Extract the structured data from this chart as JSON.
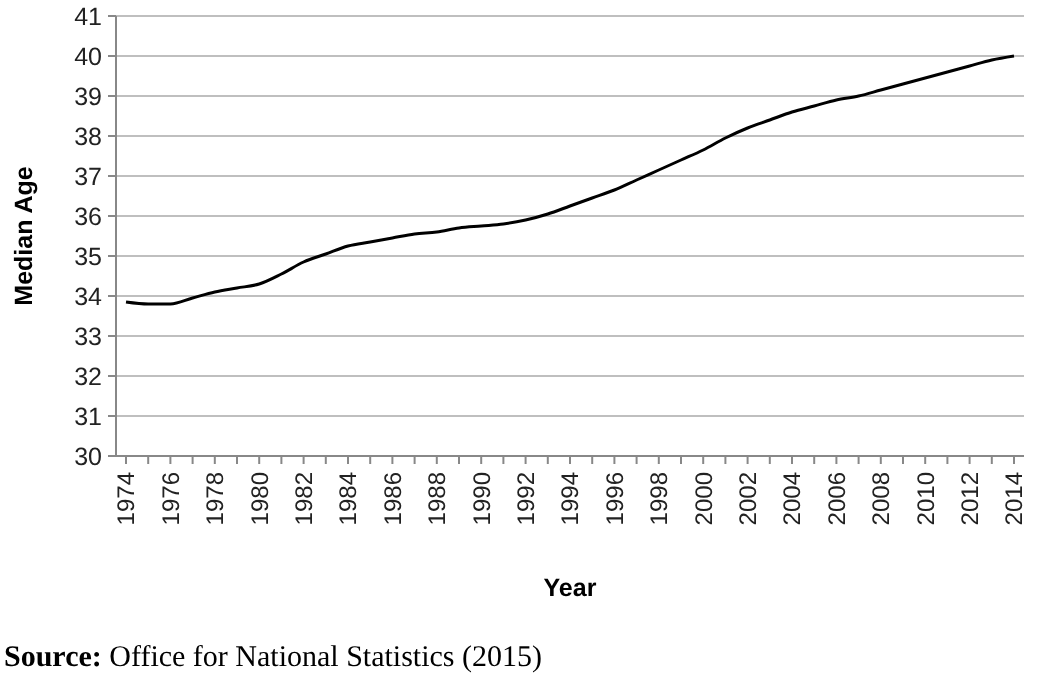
{
  "chart_data": {
    "type": "line",
    "xlabel": "Year",
    "ylabel": "Median Age",
    "categories": [
      "1974",
      null,
      "1976",
      null,
      "1978",
      null,
      "1980",
      null,
      "1982",
      null,
      "1984",
      null,
      "1986",
      null,
      "1988",
      null,
      "1990",
      null,
      "1992",
      null,
      "1994",
      null,
      "1996",
      null,
      "1998",
      null,
      "2000",
      null,
      "2002",
      null,
      "2004",
      null,
      "2006",
      null,
      "2008",
      null,
      "2010",
      null,
      "2012",
      null,
      "2014"
    ],
    "series": [
      {
        "color": "#000000",
        "values": [
          33.85,
          33.8,
          33.8,
          33.95,
          34.1,
          34.2,
          34.3,
          34.55,
          34.85,
          35.05,
          35.25,
          35.35,
          35.45,
          35.55,
          35.6,
          35.7,
          35.75,
          35.8,
          35.9,
          36.05,
          36.25,
          36.45,
          36.65,
          36.9,
          37.15,
          37.4,
          37.65,
          37.95,
          38.2,
          38.4,
          38.6,
          38.75,
          38.9,
          39.0,
          39.15,
          39.3,
          39.45,
          39.6,
          39.75,
          39.9,
          40.0
        ]
      }
    ],
    "ylim": [
      30,
      41
    ],
    "yticks": [
      30,
      31,
      32,
      33,
      34,
      35,
      36,
      37,
      38,
      39,
      40,
      41
    ],
    "grid": "y",
    "marker": "none",
    "line_style": "solid",
    "annotations": [
      "Source: Office for National Statistics (2015)"
    ]
  }
}
